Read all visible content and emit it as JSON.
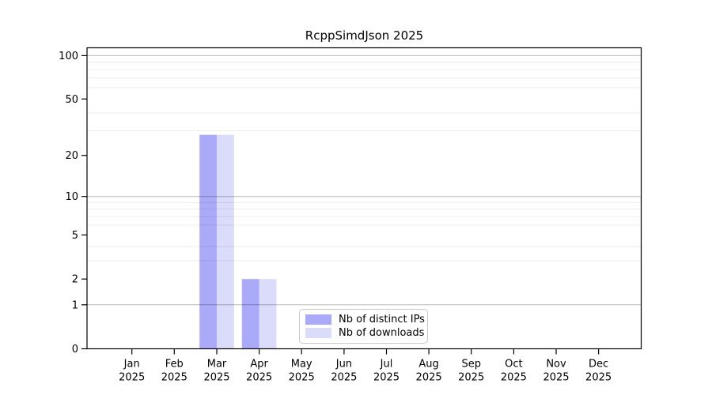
{
  "chart_data": {
    "type": "bar",
    "title": "RcppSimdJson 2025",
    "categories": [
      "Jan 2025",
      "Feb 2025",
      "Mar 2025",
      "Apr 2025",
      "May 2025",
      "Jun 2025",
      "Jul 2025",
      "Aug 2025",
      "Sep 2025",
      "Oct 2025",
      "Nov 2025",
      "Dec 2025"
    ],
    "series": [
      {
        "name": "Nb of distinct IPs",
        "color": "#aaaaf8",
        "values": [
          0,
          0,
          28,
          2,
          0,
          0,
          0,
          0,
          0,
          0,
          0,
          0
        ]
      },
      {
        "name": "Nb of downloads",
        "color": "#dbdbfa",
        "values": [
          0,
          0,
          28,
          2,
          0,
          0,
          0,
          0,
          0,
          0,
          0,
          0
        ]
      }
    ],
    "xlabel": "",
    "ylabel": "",
    "yscale": "log1p",
    "ylim": [
      0,
      114
    ],
    "ytick_labels": [
      0,
      1,
      2,
      5,
      10,
      20,
      50,
      100
    ],
    "major_gridlines": [
      1,
      10,
      100
    ],
    "minor_gridlines": [
      3,
      4,
      6,
      7,
      8,
      9,
      30,
      40,
      60,
      70,
      80,
      90
    ],
    "grid": "on",
    "legend_position": "lower center",
    "colors": {
      "frame": "#000000",
      "text": "#000000",
      "background": "#ffffff",
      "major_grid": "rgba(0,0,0,0.28)",
      "minor_grid": "rgba(0,0,0,0.075)"
    }
  }
}
